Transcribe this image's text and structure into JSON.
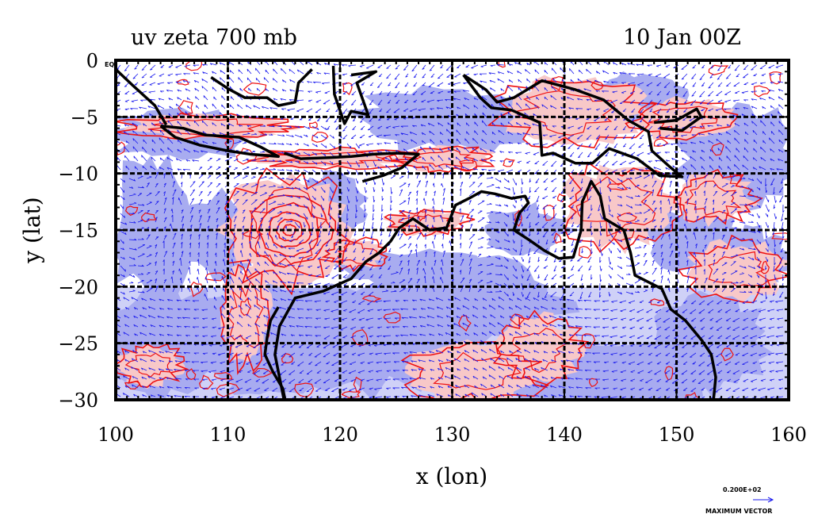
{
  "title_left": "uv zeta 700 mb",
  "title_right": "10 Jan 00Z",
  "x_axis_label": "x (lon)",
  "y_axis_label": "y (lat)",
  "corner_label": "EQ",
  "x_ticks": [
    "100",
    "110",
    "120",
    "130",
    "140",
    "150",
    "160"
  ],
  "y_ticks": [
    "0",
    "−5",
    "−10",
    "−15",
    "−20",
    "−25",
    "−30"
  ],
  "vector_key": {
    "value": "0.200E+02",
    "label": "MAXIMUM VECTOR"
  },
  "colors": {
    "positive_fill": "#f8c8c8",
    "negative_fill": "#a8acf0",
    "contour": "#ee1111",
    "vectors": "#1818ee",
    "coast": "#000000"
  },
  "chart_data": {
    "type": "map",
    "xlim": [
      100,
      160
    ],
    "ylim": [
      -30,
      0
    ],
    "x_ticks": [
      100,
      110,
      120,
      130,
      140,
      150,
      160
    ],
    "y_ticks": [
      0,
      -5,
      -10,
      -15,
      -20,
      -25,
      -30
    ],
    "grid": true,
    "cyclone_center": {
      "lon": 115.5,
      "lat": -15
    }
  }
}
